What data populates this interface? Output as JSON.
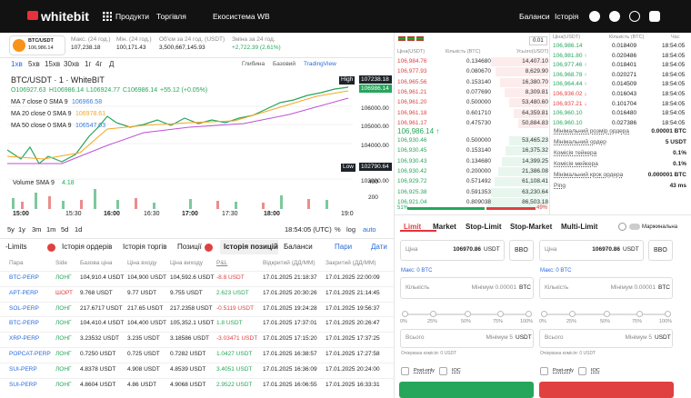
{
  "header": {
    "logo": "whitebit",
    "nav": [
      "Продукти",
      "Торгівля",
      "Екосистема WB"
    ],
    "right": [
      "Баланси",
      "Історія"
    ]
  },
  "ticker": {
    "pair": "BTC/USDT",
    "price": "106,986.14",
    "stats": [
      {
        "label": "Макс. (24 год.)",
        "value": "107,238.18"
      },
      {
        "label": "Мін. (24 год.)",
        "value": "100,171.43"
      },
      {
        "label": "Об'єм за 24 год. (USDT)",
        "value": "3,500,667,145.93"
      },
      {
        "label": "Зміна за 24 год.",
        "value": "+2,722.39 (2.61%)"
      }
    ]
  },
  "chart": {
    "intervals": [
      "1хв",
      "5хв",
      "15хв",
      "30хв",
      "1г",
      "4г",
      "Д"
    ],
    "views": [
      "Глибина",
      "Базовий",
      "TradingView"
    ],
    "title": "BTC/USDT · 1 · WhiteBIT",
    "ohlc": [
      "O106927.63",
      "H106986.14",
      "L106924.77",
      "C106986.14",
      "+55.12 (+0.05%)"
    ],
    "ma": [
      {
        "label": "MA 7 close 0 SMA 9",
        "value": "106966.58"
      },
      {
        "label": "MA 20 close 0 SMA 9",
        "value": "106978.61"
      },
      {
        "label": "MA 50 close 0 SMA 9",
        "value": "106547.03"
      }
    ],
    "high": {
      "label": "High",
      "value": "107238.18"
    },
    "last": "106986.14",
    "price_axis": [
      "106000.00",
      "105000.00",
      "104000.00",
      "103000.00"
    ],
    "low": {
      "label": "Low",
      "value": "102790.64"
    },
    "volume": {
      "label": "Volume SMA 9",
      "value": "4.18",
      "axis": [
        "400",
        "200"
      ]
    },
    "time_axis": [
      "15:00",
      "15:30",
      "16:00",
      "16:30",
      "17:00",
      "17:30",
      "18:00",
      "19:0"
    ],
    "ranges": [
      "5y",
      "1y",
      "3m",
      "1m",
      "5d",
      "1d"
    ],
    "clock": "18:54:05 (UTC)",
    "options": [
      "%",
      "log",
      "auto"
    ]
  },
  "orderbook": {
    "step": "0.01",
    "headers": [
      "Ціна(USDT)",
      "Кількість (BTC)",
      "Усього(USDT)"
    ],
    "asks": [
      [
        "106,984.76",
        "0.134680",
        "14,407.10"
      ],
      [
        "106,977.93",
        "0.080670",
        "8,629.90"
      ],
      [
        "106,965.56",
        "0.153140",
        "16,380.70"
      ],
      [
        "106,961.21",
        "0.077690",
        "8,309.81"
      ],
      [
        "106,961.20",
        "0.500000",
        "53,480.60"
      ],
      [
        "106,961.18",
        "0.601710",
        "64,359.81"
      ],
      [
        "106,961.17",
        "0.475730",
        "50,884.83"
      ]
    ],
    "mid": "106,986.14 ↑",
    "bids": [
      [
        "106,930.46",
        "0.500000",
        "53,465.23"
      ],
      [
        "106,930.45",
        "0.153140",
        "16,375.32"
      ],
      [
        "106,930.43",
        "0.134680",
        "14,399.25"
      ],
      [
        "106,930.42",
        "0.200000",
        "21,386.08"
      ],
      [
        "106,929.72",
        "0.571492",
        "61,108.41"
      ],
      [
        "106,925.38",
        "0.591353",
        "63,230.64"
      ],
      [
        "106,921.04",
        "0.809038",
        "86,503.18"
      ]
    ],
    "buy_share": "51%",
    "sell_share": "49%"
  },
  "trades": {
    "headers": [
      "Ціна(USDT)",
      "Кількість (BTC)",
      "Час"
    ],
    "rows": [
      [
        "106,986.14",
        "0.018409",
        "18:54:05"
      ],
      [
        "106,981.80 ↑",
        "0.020486",
        "18:54:05"
      ],
      [
        "106,977.46 ↑",
        "0.018401",
        "18:54:05"
      ],
      [
        "106,968.78 ↑",
        "0.020271",
        "18:54:05"
      ],
      [
        "106,964.44 ↑",
        "0.014509",
        "18:54:05"
      ],
      [
        "106,936.02 ↓",
        "0.016043",
        "18:54:05"
      ],
      [
        "106,937.21 ↓",
        "0.101704",
        "18:54:05"
      ],
      [
        "106,960.10",
        "0.016480",
        "18:54:05"
      ],
      [
        "106,960.10",
        "0.027386",
        "18:54:05"
      ]
    ]
  },
  "info": [
    [
      "Мінімальний розмір ордера",
      "0.00001 BTC"
    ],
    [
      "Мінімальний ордер",
      "5 USDT"
    ],
    [
      "Комісія тейкера",
      "0.1%"
    ],
    [
      "Комісія мейкера",
      "0.1%"
    ],
    [
      "Мінімальний крок ордера",
      "0.000001 BTC"
    ],
    [
      "Ping",
      "43 ms"
    ]
  ],
  "form": {
    "tabs": [
      "Limit",
      "Market",
      "Stop-Limit",
      "Stop-Market",
      "Multi-Limit"
    ],
    "margin": "Маржинальна",
    "slider": [
      "0%",
      "25%",
      "50%",
      "75%",
      "100%"
    ],
    "sides": [
      {
        "price_label": "Ціна",
        "price": "106970.86",
        "price_unit": "USDT",
        "bbo": "BBO",
        "max": "Макс: 0 BTC",
        "qty_label": "Кількість",
        "qty_min": "Мінімум 0.00001",
        "qty_unit": "BTC",
        "total_label": "Всього",
        "total_min": "Мінімум 5",
        "total_unit": "USDT",
        "fee": "Очікувана комісія: 0 USDT",
        "post_only": "Post-only",
        "ioc": "IOC"
      },
      {
        "price_label": "Ціна",
        "price": "106970.86",
        "price_unit": "USDT",
        "bbo": "BBO",
        "max": "Макс: 0 BTC",
        "qty_label": "Кількість",
        "qty_min": "Мінімум 0.00001",
        "qty_unit": "BTC",
        "total_label": "Всього",
        "total_min": "Мінімум 5",
        "total_unit": "USDT",
        "fee": "Очікувана комісія: 0 USDT",
        "post_only": "Post-only",
        "ioc": "IOC"
      }
    ]
  },
  "positions": {
    "tabs": [
      "-Limits",
      "Історія ордерів",
      "Історія торгів",
      "Позиції",
      "Історія позицій",
      "Баланси"
    ],
    "filters": [
      "Пари",
      "Дати"
    ],
    "columns": [
      "Пара",
      "Side",
      "Базова ціна",
      "Ціна входу",
      "Ціна виходу",
      "P&L",
      "Відкритий (ДД/ММ)",
      "Закритий (ДД/ММ)"
    ],
    "rows": [
      [
        "BTC-PERP",
        "ЛОНГ",
        "104,910.4 USDT",
        "104,900 USDT",
        "104,592.6 USDT",
        "-8.8 USDT",
        "17.01.2025 21:18:37",
        "17.01.2025 22:00:09"
      ],
      [
        "APT-PERP",
        "ШОРТ",
        "9.768 USDT",
        "9.77 USDT",
        "9.755 USDT",
        "2.623 USDT",
        "17.01.2025 20:30:26",
        "17.01.2025 21:14:45"
      ],
      [
        "SOL-PERP",
        "ЛОНГ",
        "217.6717 USDT",
        "217.65 USDT",
        "217.2358 USDT",
        "-0.5119 USDT",
        "17.01.2025 19:24:28",
        "17.01.2025 19:56:37"
      ],
      [
        "BTC-PERP",
        "ЛОНГ",
        "104,410.4 USDT",
        "104,400 USDT",
        "105,352.1 USDT",
        "1.8 USDT",
        "17.01.2025 17:37:01",
        "17.01.2025 20:26:47"
      ],
      [
        "XRP-PERP",
        "ЛОНГ",
        "3.23532 USDT",
        "3.235 USDT",
        "3.18586 USDT",
        "-3.03471 USDT",
        "17.01.2025 17:15:20",
        "17.01.2025 17:37:25"
      ],
      [
        "POPCAT-PERP",
        "ЛОНГ",
        "0.7250 USDT",
        "0.725 USDT",
        "0.7282 USDT",
        "1.0427 USDT",
        "17.01.2025 16:38:57",
        "17.01.2025 17:27:58"
      ],
      [
        "SUI-PERP",
        "ЛОНГ",
        "4.8378 USDT",
        "4.908 USDT",
        "4.8539 USDT",
        "3.4051 USDT",
        "17.01.2025 16:36:09",
        "17.01.2025 20:24:00"
      ],
      [
        "SUI-PERP",
        "ЛОНГ",
        "4.8604 USDT",
        "4.86 USDT",
        "4.9068 USDT",
        "2.9522 USDT",
        "17.01.2025 16:06:55",
        "17.01.2025 16:33:31"
      ]
    ]
  }
}
